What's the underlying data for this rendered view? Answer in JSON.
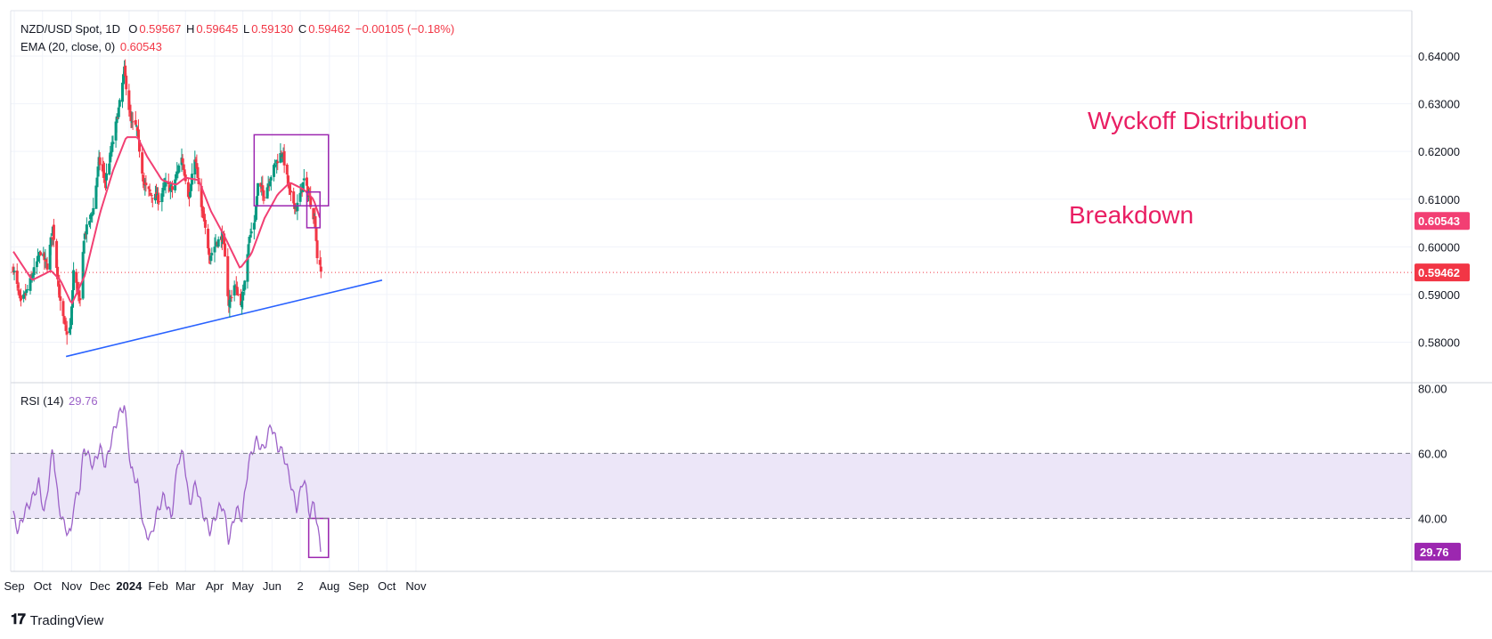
{
  "header": {
    "symbol": "NZD/USD Spot, 1D",
    "o_label": "O",
    "o": "0.59567",
    "h_label": "H",
    "h": "0.59645",
    "l_label": "L",
    "l": "0.59130",
    "c_label": "C",
    "c": "0.59462",
    "change": "−0.00105 (−0.18%)",
    "ema_label": "EMA (20, close, 0)",
    "ema_value": "0.60543"
  },
  "rsi_header": {
    "label": "RSI (14)",
    "value": "29.76"
  },
  "footer": {
    "brand": "TradingView"
  },
  "annotations": {
    "pattern": "Wyckoff Distribution",
    "breakdown": "Breakdown"
  },
  "colors": {
    "up": "#089981",
    "down": "#f23645",
    "ema": "#f23f73",
    "trend": "#2962ff",
    "box": "#9c27b0",
    "rsi": "#9c62c8",
    "annot": "#e91e63",
    "rsi_band": "#ece6f8"
  },
  "chart_data": [
    {
      "type": "candlestick",
      "title": "NZD/USD Spot, 1D",
      "ylim": [
        0.5715,
        0.6415
      ],
      "y_ticks": [
        "0.64000",
        "0.63000",
        "0.62000",
        "0.61000",
        "0.60000",
        "0.59000",
        "0.58000"
      ],
      "x_ticks": [
        "Sep",
        "Oct",
        "Nov",
        "Dec",
        "2024",
        "Feb",
        "Mar",
        "Apr",
        "May",
        "Jun",
        "2",
        "Aug",
        "Sep",
        "Oct",
        "Nov"
      ],
      "last_close": 0.59462,
      "ema_last": 0.60543,
      "series": [
        {
          "name": "NZD/USD",
          "anchors": [
            [
              "2023-08-31",
              0.5955
            ],
            [
              "2023-09-08",
              0.588
            ],
            [
              "2023-09-15",
              0.591
            ],
            [
              "2023-09-29",
              0.599
            ],
            [
              "2023-10-06",
              0.596
            ],
            [
              "2023-10-12",
              0.604
            ],
            [
              "2023-10-20",
              0.588
            ],
            [
              "2023-10-26",
              0.582
            ],
            [
              "2023-10-31",
              0.583
            ],
            [
              "2023-11-03",
              0.595
            ],
            [
              "2023-11-10",
              0.588
            ],
            [
              "2023-11-14",
              0.602
            ],
            [
              "2023-11-24",
              0.608
            ],
            [
              "2023-11-30",
              0.618
            ],
            [
              "2023-12-07",
              0.614
            ],
            [
              "2023-12-13",
              0.62
            ],
            [
              "2023-12-22",
              0.63
            ],
            [
              "2023-12-27",
              0.637
            ],
            [
              "2024-01-03",
              0.626
            ],
            [
              "2024-01-09",
              0.625
            ],
            [
              "2024-01-17",
              0.613
            ],
            [
              "2024-01-24",
              0.611
            ],
            [
              "2024-02-02",
              0.61
            ],
            [
              "2024-02-09",
              0.613
            ],
            [
              "2024-02-16",
              0.612
            ],
            [
              "2024-02-26",
              0.619
            ],
            [
              "2024-03-05",
              0.61
            ],
            [
              "2024-03-11",
              0.619
            ],
            [
              "2024-03-18",
              0.608
            ],
            [
              "2024-03-27",
              0.598
            ],
            [
              "2024-04-03",
              0.601
            ],
            [
              "2024-04-10",
              0.602
            ],
            [
              "2024-04-16",
              0.588
            ],
            [
              "2024-04-22",
              0.592
            ],
            [
              "2024-04-30",
              0.588
            ],
            [
              "2024-05-07",
              0.601
            ],
            [
              "2024-05-14",
              0.606
            ],
            [
              "2024-05-17",
              0.613
            ],
            [
              "2024-05-24",
              0.611
            ],
            [
              "2024-05-31",
              0.615
            ],
            [
              "2024-06-06",
              0.618
            ],
            [
              "2024-06-12",
              0.62
            ],
            [
              "2024-06-20",
              0.611
            ],
            [
              "2024-06-27",
              0.608
            ],
            [
              "2024-07-05",
              0.614
            ],
            [
              "2024-07-11",
              0.61
            ],
            [
              "2024-07-17",
              0.605
            ],
            [
              "2024-07-19",
              0.598
            ],
            [
              "2024-07-23",
              0.5946
            ]
          ]
        },
        {
          "name": "EMA (20, close, 0)",
          "anchors": [
            [
              "2023-08-31",
              0.599
            ],
            [
              "2023-09-20",
              0.593
            ],
            [
              "2023-10-10",
              0.595
            ],
            [
              "2023-10-20",
              0.593
            ],
            [
              "2023-11-01",
              0.588
            ],
            [
              "2023-11-15",
              0.594
            ],
            [
              "2023-12-01",
              0.607
            ],
            [
              "2023-12-15",
              0.616
            ],
            [
              "2023-12-29",
              0.623
            ],
            [
              "2024-01-10",
              0.623
            ],
            [
              "2024-01-20",
              0.619
            ],
            [
              "2024-02-05",
              0.614
            ],
            [
              "2024-02-20",
              0.613
            ],
            [
              "2024-03-01",
              0.6145
            ],
            [
              "2024-03-15",
              0.614
            ],
            [
              "2024-03-28",
              0.6075
            ],
            [
              "2024-04-12",
              0.602
            ],
            [
              "2024-04-28",
              0.5955
            ],
            [
              "2024-05-10",
              0.5985
            ],
            [
              "2024-05-24",
              0.606
            ],
            [
              "2024-06-07",
              0.611
            ],
            [
              "2024-06-20",
              0.6135
            ],
            [
              "2024-07-05",
              0.612
            ],
            [
              "2024-07-15",
              0.61
            ],
            [
              "2024-07-23",
              0.6054
            ]
          ]
        }
      ],
      "trend_line": [
        [
          "2023-10-26",
          0.577
        ],
        [
          "2024-09-26",
          0.593
        ]
      ],
      "boxes": [
        {
          "from": "2024-05-13",
          "to": "2024-07-31",
          "low": 0.6086,
          "high": 0.6235
        },
        {
          "from": "2024-07-08",
          "to": "2024-07-22",
          "low": 0.604,
          "high": 0.6115
        }
      ]
    },
    {
      "type": "line",
      "title": "RSI (14)",
      "ylim": [
        27,
        79
      ],
      "y_ticks": [
        "80.00",
        "60.00",
        "40.00"
      ],
      "bands": [
        40,
        60
      ],
      "last": 29.76,
      "series": [
        {
          "name": "RSI (14)",
          "anchors": [
            [
              "2023-08-31",
              41
            ],
            [
              "2023-09-05",
              36
            ],
            [
              "2023-09-12",
              42
            ],
            [
              "2023-09-20",
              46
            ],
            [
              "2023-09-27",
              51
            ],
            [
              "2023-10-03",
              41
            ],
            [
              "2023-10-12",
              62
            ],
            [
              "2023-10-18",
              44
            ],
            [
              "2023-10-25",
              37
            ],
            [
              "2023-10-31",
              35
            ],
            [
              "2023-11-03",
              44
            ],
            [
              "2023-11-10",
              50
            ],
            [
              "2023-11-14",
              62
            ],
            [
              "2023-11-24",
              56
            ],
            [
              "2023-12-01",
              62
            ],
            [
              "2023-12-07",
              56
            ],
            [
              "2023-12-13",
              64
            ],
            [
              "2023-12-20",
              71
            ],
            [
              "2023-12-27",
              75
            ],
            [
              "2024-01-03",
              55
            ],
            [
              "2024-01-10",
              51
            ],
            [
              "2024-01-17",
              36
            ],
            [
              "2024-01-24",
              34
            ],
            [
              "2024-01-31",
              42
            ],
            [
              "2024-02-07",
              47
            ],
            [
              "2024-02-15",
              40
            ],
            [
              "2024-02-22",
              58
            ],
            [
              "2024-02-28",
              60
            ],
            [
              "2024-03-05",
              44
            ],
            [
              "2024-03-12",
              51
            ],
            [
              "2024-03-19",
              42
            ],
            [
              "2024-03-27",
              36
            ],
            [
              "2024-04-05",
              43
            ],
            [
              "2024-04-10",
              44
            ],
            [
              "2024-04-16",
              33
            ],
            [
              "2024-04-24",
              43
            ],
            [
              "2024-04-30",
              40
            ],
            [
              "2024-05-07",
              57
            ],
            [
              "2024-05-15",
              64
            ],
            [
              "2024-05-23",
              61
            ],
            [
              "2024-05-31",
              69
            ],
            [
              "2024-06-07",
              62
            ],
            [
              "2024-06-13",
              60
            ],
            [
              "2024-06-20",
              52
            ],
            [
              "2024-06-27",
              43
            ],
            [
              "2024-07-05",
              53
            ],
            [
              "2024-07-11",
              41
            ],
            [
              "2024-07-16",
              45
            ],
            [
              "2024-07-19",
              38
            ],
            [
              "2024-07-23",
              29.76
            ]
          ]
        }
      ],
      "box": {
        "from": "2024-07-10",
        "to": "2024-07-31",
        "low": 28,
        "high": 40
      }
    }
  ]
}
